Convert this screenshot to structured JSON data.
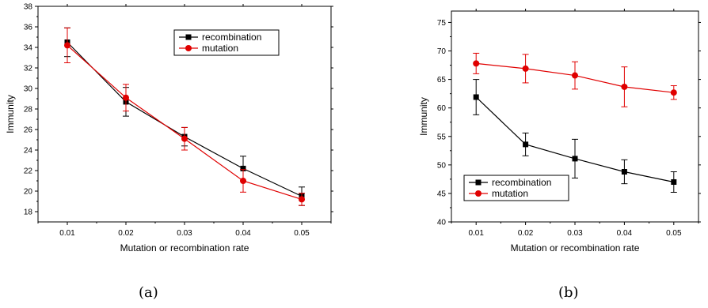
{
  "chart_data": [
    {
      "type": "line",
      "caption": "(a)",
      "xlabel": "Mutation or recombination rate",
      "ylabel": "Immunity",
      "x": [
        0.01,
        0.02,
        0.03,
        0.04,
        0.05
      ],
      "x_ticks": [
        "0.01",
        "0.02",
        "0.03",
        "0.04",
        "0.05"
      ],
      "xlim": [
        0.005,
        0.055
      ],
      "ylim": [
        17,
        38
      ],
      "y_ticks": [
        18,
        20,
        22,
        24,
        26,
        28,
        30,
        32,
        34,
        36,
        38
      ],
      "legend_position": "top-right",
      "series": [
        {
          "name": "recombination",
          "color": "#000000",
          "marker": "square",
          "values": [
            34.5,
            28.7,
            25.3,
            22.2,
            19.5
          ],
          "errors": [
            1.4,
            1.4,
            0.9,
            1.2,
            0.9
          ]
        },
        {
          "name": "mutation",
          "color": "#e00000",
          "marker": "circle",
          "values": [
            34.2,
            29.1,
            25.1,
            21.0,
            19.2
          ],
          "errors": [
            1.7,
            1.3,
            1.1,
            1.1,
            0.6
          ]
        }
      ]
    },
    {
      "type": "line",
      "caption": "(b)",
      "xlabel": "Mutation or recombination rate",
      "ylabel": "Immunity",
      "x": [
        0.01,
        0.02,
        0.03,
        0.04,
        0.05
      ],
      "x_ticks": [
        "0.01",
        "0.02",
        "0.03",
        "0.04",
        "0.05"
      ],
      "xlim": [
        0.005,
        0.055
      ],
      "ylim": [
        40,
        77
      ],
      "y_ticks": [
        40,
        45,
        50,
        55,
        60,
        65,
        70,
        75
      ],
      "legend_position": "bottom-left",
      "series": [
        {
          "name": "recombination",
          "color": "#000000",
          "marker": "square",
          "values": [
            61.9,
            53.6,
            51.1,
            48.8,
            47.0
          ],
          "errors": [
            3.1,
            2.0,
            3.4,
            2.1,
            1.8
          ]
        },
        {
          "name": "mutation",
          "color": "#e00000",
          "marker": "circle",
          "values": [
            67.8,
            66.9,
            65.7,
            63.7,
            62.7
          ],
          "errors": [
            1.8,
            2.5,
            2.4,
            3.5,
            1.2
          ]
        }
      ]
    }
  ]
}
